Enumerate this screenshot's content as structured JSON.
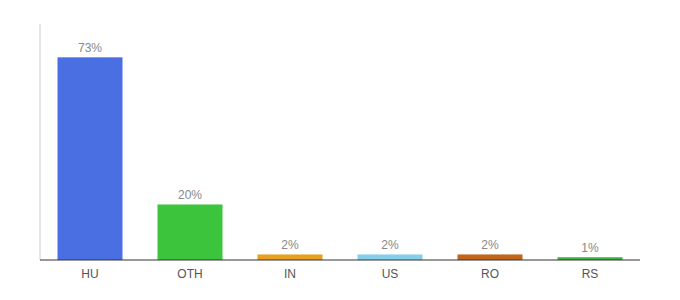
{
  "chart_data": {
    "type": "bar",
    "categories": [
      "HU",
      "OTH",
      "IN",
      "US",
      "RO",
      "RS"
    ],
    "values": [
      73,
      20,
      2,
      2,
      2,
      1
    ],
    "colors": [
      "#4A6FE3",
      "#3DC43D",
      "#E8A020",
      "#87CEEB",
      "#C0651A",
      "#3DB53D"
    ],
    "ylim": [
      0,
      85
    ],
    "grid": false,
    "tick_labels": "x",
    "data_labels": true,
    "value_labels": [
      "73%",
      "20%",
      "2%",
      "2%",
      "2%",
      "1%"
    ]
  }
}
